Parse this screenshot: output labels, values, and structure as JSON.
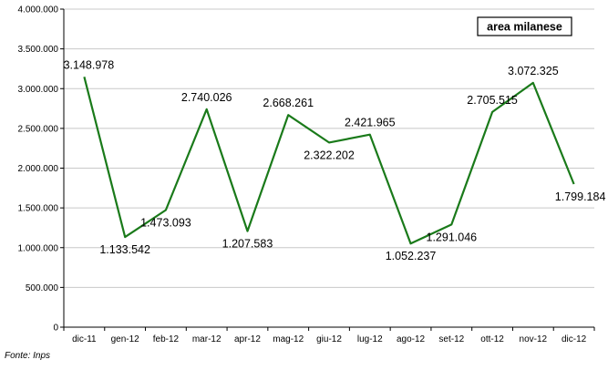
{
  "chart_data": {
    "type": "line",
    "categories": [
      "dic-11",
      "gen-12",
      "feb-12",
      "mar-12",
      "apr-12",
      "mag-12",
      "giu-12",
      "lug-12",
      "ago-12",
      "set-12",
      "ott-12",
      "nov-12",
      "dic-12"
    ],
    "series": [
      {
        "name": "area milanese",
        "values": [
          3148978,
          1133542,
          1473093,
          2740026,
          1207583,
          2668261,
          2322202,
          2421965,
          1052237,
          1291046,
          2705515,
          3072325,
          1799184
        ],
        "value_labels": [
          "3.148.978",
          "1.133.542",
          "1.473.093",
          "2.740.026",
          "1.207.583",
          "2.668.261",
          "2.322.202",
          "2.421.965",
          "1.052.237",
          "1.291.046",
          "2.705.515",
          "3.072.325",
          "1.799.184"
        ],
        "color": "#1a7a1a"
      }
    ],
    "ylim": [
      0,
      4000000
    ],
    "yticks": [
      0,
      500000,
      1000000,
      1500000,
      2000000,
      2500000,
      3000000,
      3500000,
      4000000
    ],
    "ytick_labels": [
      "0",
      "500.000",
      "1.000.000",
      "1.500.000",
      "2.000.000",
      "2.500.000",
      "3.000.000",
      "3.500.000",
      "4.000.000"
    ],
    "grid": true,
    "legend_placement": "top-right",
    "title": "",
    "xlabel": "",
    "ylabel": ""
  },
  "source_note": "Fonte: Inps"
}
